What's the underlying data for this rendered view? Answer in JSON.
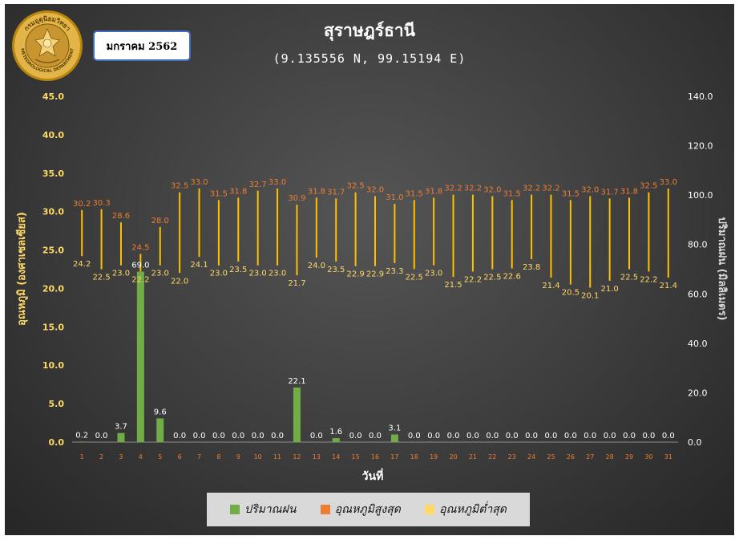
{
  "header": {
    "title": "สุราษฎร์ธานี",
    "subtitle": "(9.135556 N, 99.15194 E)",
    "month_label": "มกราคม 2562"
  },
  "logo": {
    "top_text": "กรมอุตุนิยมวิทยา",
    "bottom_text": "METEOROLOGICAL DEPARTMENT"
  },
  "chart_data": {
    "type": "bar",
    "xlabel": "วันที่",
    "ylabel_left": "อุณหภูมิ (องศาเซลเซียส)",
    "ylabel_right": "ปริมาณฝน (มิลลิเมตร)",
    "ylim_left": [
      0,
      45
    ],
    "ylim_right": [
      0,
      140
    ],
    "left_ticks": [
      "0.0",
      "5.0",
      "10.0",
      "15.0",
      "20.0",
      "25.0",
      "30.0",
      "35.0",
      "40.0",
      "45.0"
    ],
    "right_ticks": [
      "0.0",
      "20.0",
      "40.0",
      "60.0",
      "80.0",
      "100.0",
      "120.0",
      "140.0"
    ],
    "x": [
      1,
      2,
      3,
      4,
      5,
      6,
      7,
      8,
      9,
      10,
      11,
      12,
      13,
      14,
      15,
      16,
      17,
      18,
      19,
      20,
      21,
      22,
      23,
      24,
      25,
      26,
      27,
      28,
      29,
      30,
      31
    ],
    "series": [
      {
        "name": "ปริมาณฝน",
        "axis": "right",
        "color": "#70ad47",
        "values": [
          0.2,
          0.0,
          3.7,
          69.0,
          9.6,
          0.0,
          0.0,
          0.0,
          0.0,
          0.0,
          0.0,
          22.1,
          0.0,
          1.6,
          0.0,
          0.0,
          3.1,
          0.0,
          0.0,
          0.0,
          0.0,
          0.0,
          0.0,
          0.0,
          0.0,
          0.0,
          0.0,
          0.0,
          0.0,
          0.0,
          0.0
        ]
      },
      {
        "name": "อุณหภูมิสูงสุด",
        "axis": "left",
        "color": "#ed7d31",
        "values": [
          30.2,
          30.3,
          28.6,
          24.5,
          28.0,
          32.5,
          33.0,
          31.5,
          31.8,
          32.7,
          33.0,
          30.9,
          31.8,
          31.7,
          32.5,
          32.0,
          31.0,
          31.5,
          31.8,
          32.2,
          32.2,
          32.0,
          31.5,
          32.2,
          32.2,
          31.5,
          32.0,
          31.7,
          31.8,
          32.5,
          33.0
        ]
      },
      {
        "name": "อุณหภูมิต่ำสุด",
        "axis": "left",
        "color": "#ffd966",
        "values": [
          24.2,
          22.5,
          23.0,
          22.2,
          23.0,
          22.0,
          24.1,
          23.0,
          23.5,
          23.0,
          23.0,
          21.7,
          24.0,
          23.5,
          22.9,
          22.9,
          23.3,
          22.5,
          23.0,
          21.5,
          22.2,
          22.5,
          22.6,
          23.8,
          21.4,
          20.5,
          20.1,
          21.0,
          22.5,
          22.2,
          21.4
        ]
      }
    ],
    "range_line_color": "#ffc000",
    "grid": false,
    "legend_position": "bottom"
  },
  "legend": {
    "items": [
      {
        "label": "ปริมาณฝน",
        "color": "#70ad47"
      },
      {
        "label": "อุณหภูมิสูงสุด",
        "color": "#ed7d31"
      },
      {
        "label": "อุณหภูมิต่ำสุด",
        "color": "#ffd966"
      }
    ]
  }
}
